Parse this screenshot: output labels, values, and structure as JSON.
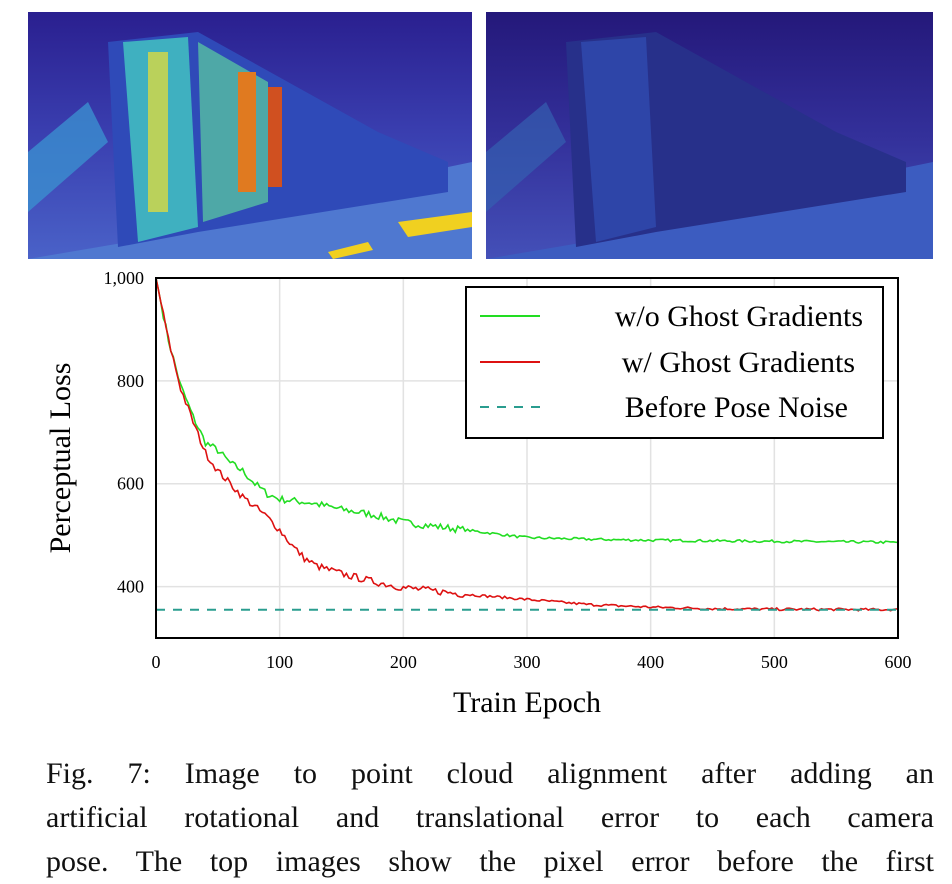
{
  "figure": {
    "caption_lines": [
      "Fig. 7: Image to point cloud alignment after adding an",
      "artificial rotational and translational error to each camera",
      "pose. The top images show the pixel error before the first"
    ]
  },
  "chart_data": {
    "type": "line",
    "title": "",
    "xlabel": "Train Epoch",
    "ylabel": "Perceptual Loss",
    "xlim": [
      0,
      600
    ],
    "ylim": [
      300,
      1000
    ],
    "xticks": [
      "0",
      "100",
      "200",
      "300",
      "400",
      "500",
      "600"
    ],
    "yticks": [
      "400",
      "600",
      "800",
      "1,000"
    ],
    "ytick_values": [
      400,
      600,
      800,
      1000
    ],
    "xtick_values": [
      0,
      100,
      200,
      300,
      400,
      500,
      600
    ],
    "grid": true,
    "legend_position": "top-right",
    "series": [
      {
        "name": "w/o Ghost Gradients",
        "color": "#22dd22",
        "style": "solid",
        "x": [
          0,
          10,
          20,
          30,
          40,
          50,
          60,
          70,
          80,
          90,
          100,
          125,
          150,
          175,
          200,
          250,
          300,
          350,
          400,
          500,
          600
        ],
        "y": [
          1000,
          880,
          790,
          730,
          680,
          665,
          640,
          625,
          600,
          580,
          570,
          563,
          550,
          540,
          525,
          510,
          495,
          492,
          490,
          488,
          486
        ]
      },
      {
        "name": "w/ Ghost Gradients",
        "color": "#dd1111",
        "style": "solid",
        "x": [
          0,
          10,
          20,
          30,
          40,
          50,
          60,
          70,
          80,
          90,
          100,
          110,
          120,
          130,
          150,
          175,
          200,
          250,
          300,
          350,
          400,
          450,
          500,
          600
        ],
        "y": [
          1000,
          880,
          785,
          720,
          660,
          625,
          600,
          575,
          555,
          535,
          510,
          480,
          455,
          440,
          425,
          410,
          398,
          385,
          375,
          365,
          360,
          357,
          356,
          355
        ]
      },
      {
        "name": "Before Pose Noise",
        "color": "#2a9d8f",
        "style": "dashed",
        "x": [
          0,
          600
        ],
        "y": [
          355,
          355
        ]
      }
    ]
  }
}
